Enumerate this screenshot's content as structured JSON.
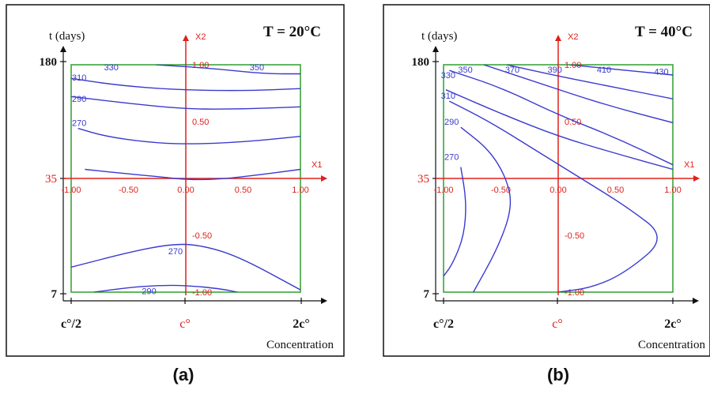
{
  "colors": {
    "contour": "#3a3ad0",
    "axes_red": "#e0201a",
    "domain_box": "#2f9e2f",
    "frame": "#111111",
    "text": "#111111"
  },
  "chart_data": [
    {
      "type": "contour",
      "caption": "(a)",
      "title": "T =  20°C",
      "ylabel": "t (days)",
      "xlabel": "Concentration",
      "y_ticks": [
        "180",
        "35",
        "7"
      ],
      "x_ticks": [
        "c°/2",
        "c°",
        "2c°"
      ],
      "coded_axes": {
        "x": "X1",
        "y": "X2"
      },
      "coded_x_ticks": [
        "-1.00",
        "-0.50",
        "0.00",
        "0.50",
        "1.00"
      ],
      "coded_y_ticks": [
        "1.00",
        "0.50",
        "-0.50",
        "-1.00"
      ],
      "coded_range": {
        "x": [
          -1,
          1
        ],
        "y": [
          -1,
          1
        ]
      },
      "contours": [
        {
          "level": "330",
          "points": [
            [
              -0.26,
              1.0
            ],
            [
              0.2,
              0.97
            ],
            [
              0.7,
              0.92
            ],
            [
              1.0,
              0.92
            ]
          ]
        },
        {
          "level": "310",
          "points": [
            [
              -1.0,
              0.88
            ],
            [
              -0.6,
              0.82
            ],
            [
              -0.1,
              0.78
            ],
            [
              0.5,
              0.77
            ],
            [
              1.0,
              0.79
            ]
          ]
        },
        {
          "level": "290",
          "points": [
            [
              -1.0,
              0.72
            ],
            [
              -0.5,
              0.66
            ],
            [
              0.0,
              0.61
            ],
            [
              0.5,
              0.61
            ],
            [
              1.0,
              0.63
            ]
          ]
        },
        {
          "level": "270",
          "points": [
            [
              -0.94,
              0.44
            ],
            [
              -0.7,
              0.37
            ],
            [
              -0.35,
              0.32
            ],
            [
              0.0,
              0.3
            ],
            [
              0.5,
              0.32
            ],
            [
              1.0,
              0.37
            ]
          ]
        },
        {
          "level": "",
          "points": [
            [
              -0.88,
              0.08
            ],
            [
              -0.5,
              0.04
            ],
            [
              -0.18,
              0.01
            ],
            [
              0.0,
              -0.01
            ],
            [
              0.25,
              -0.01
            ],
            [
              0.55,
              0.02
            ],
            [
              1.0,
              0.08
            ]
          ]
        },
        {
          "level": "270",
          "points": [
            [
              -1.0,
              -0.78
            ],
            [
              -0.5,
              -0.65
            ],
            [
              -0.15,
              -0.58
            ],
            [
              0.1,
              -0.58
            ],
            [
              0.45,
              -0.68
            ],
            [
              1.0,
              -0.98
            ]
          ]
        },
        {
          "level": "290",
          "points": [
            [
              -0.8,
              -1.0
            ],
            [
              -0.5,
              -0.96
            ],
            [
              -0.25,
              -0.94
            ],
            [
              0.0,
              -0.94
            ],
            [
              0.3,
              -0.97
            ],
            [
              0.45,
              -1.0
            ]
          ]
        }
      ],
      "contour_labels": [
        {
          "text": "330",
          "at": [
            -0.65,
            0.98
          ]
        },
        {
          "text": "350",
          "at": [
            0.62,
            0.98
          ]
        },
        {
          "text": "310",
          "at": [
            -0.93,
            0.89
          ]
        },
        {
          "text": "290",
          "at": [
            -0.93,
            0.7
          ]
        },
        {
          "text": "270",
          "at": [
            -0.93,
            0.49
          ]
        },
        {
          "text": "270",
          "at": [
            -0.09,
            -0.64
          ]
        },
        {
          "text": "290",
          "at": [
            -0.32,
            -0.99
          ]
        }
      ]
    },
    {
      "type": "contour",
      "caption": "(b)",
      "title": "T =  40°C",
      "ylabel": "t (days)",
      "xlabel": "Concentration",
      "y_ticks": [
        "180",
        "35",
        "7"
      ],
      "x_ticks": [
        "c°/2",
        "c°",
        "2c°"
      ],
      "coded_axes": {
        "x": "X1",
        "y": "X2"
      },
      "coded_x_ticks": [
        "-1.00",
        "-0.50",
        "0.00",
        "0.50",
        "1.00"
      ],
      "coded_y_ticks": [
        "1.00",
        "0.50",
        "-0.50",
        "-1.00"
      ],
      "coded_range": {
        "x": [
          -1,
          1
        ],
        "y": [
          -1,
          1
        ]
      },
      "contours": [
        {
          "level": "410",
          "points": [
            [
              0.1,
              1.0
            ],
            [
              0.5,
              0.96
            ],
            [
              0.8,
              0.93
            ],
            [
              1.0,
              0.91
            ]
          ]
        },
        {
          "level": "390",
          "points": [
            [
              -0.45,
              1.0
            ],
            [
              0.0,
              0.9
            ],
            [
              0.5,
              0.8
            ],
            [
              1.0,
              0.7
            ]
          ]
        },
        {
          "level": "370",
          "points": [
            [
              -0.65,
              1.0
            ],
            [
              -0.2,
              0.85
            ],
            [
              0.4,
              0.65
            ],
            [
              1.0,
              0.49
            ]
          ]
        },
        {
          "level": "350",
          "points": [
            [
              -0.95,
              0.95
            ],
            [
              -0.5,
              0.8
            ],
            [
              0.0,
              0.56
            ],
            [
              0.5,
              0.36
            ],
            [
              1.0,
              0.12
            ]
          ]
        },
        {
          "level": "330",
          "points": [
            [
              -0.98,
              0.78
            ],
            [
              -0.5,
              0.57
            ],
            [
              0.0,
              0.37
            ],
            [
              0.5,
              0.22
            ],
            [
              1.0,
              0.08
            ]
          ]
        },
        {
          "level": "310",
          "points": [
            [
              -0.95,
              0.68
            ],
            [
              -0.6,
              0.5
            ],
            [
              -0.2,
              0.25
            ],
            [
              0.2,
              0.0
            ],
            [
              0.6,
              -0.25
            ],
            [
              0.95,
              -0.52
            ],
            [
              0.6,
              -0.82
            ],
            [
              0.3,
              -0.96
            ],
            [
              0.0,
              -1.0
            ]
          ]
        },
        {
          "level": "290",
          "points": [
            [
              -0.85,
              0.45
            ],
            [
              -0.6,
              0.25
            ],
            [
              -0.45,
              0.0
            ],
            [
              -0.4,
              -0.25
            ],
            [
              -0.52,
              -0.6
            ],
            [
              -0.74,
              -1.0
            ]
          ]
        },
        {
          "level": "270",
          "points": [
            [
              -0.85,
              0.1
            ],
            [
              -0.8,
              -0.2
            ],
            [
              -0.82,
              -0.5
            ],
            [
              -0.92,
              -0.75
            ],
            [
              -1.0,
              -0.86
            ]
          ]
        }
      ],
      "contour_labels": [
        {
          "text": "350",
          "at": [
            -0.81,
            0.96
          ]
        },
        {
          "text": "370",
          "at": [
            -0.4,
            0.96
          ]
        },
        {
          "text": "390",
          "at": [
            -0.03,
            0.96
          ]
        },
        {
          "text": "410",
          "at": [
            0.4,
            0.96
          ]
        },
        {
          "text": "430",
          "at": [
            0.9,
            0.94
          ]
        },
        {
          "text": "330",
          "at": [
            -0.96,
            0.91
          ]
        },
        {
          "text": "310",
          "at": [
            -0.96,
            0.73
          ]
        },
        {
          "text": "290",
          "at": [
            -0.93,
            0.5
          ]
        },
        {
          "text": "270",
          "at": [
            -0.93,
            0.19
          ]
        }
      ]
    }
  ]
}
